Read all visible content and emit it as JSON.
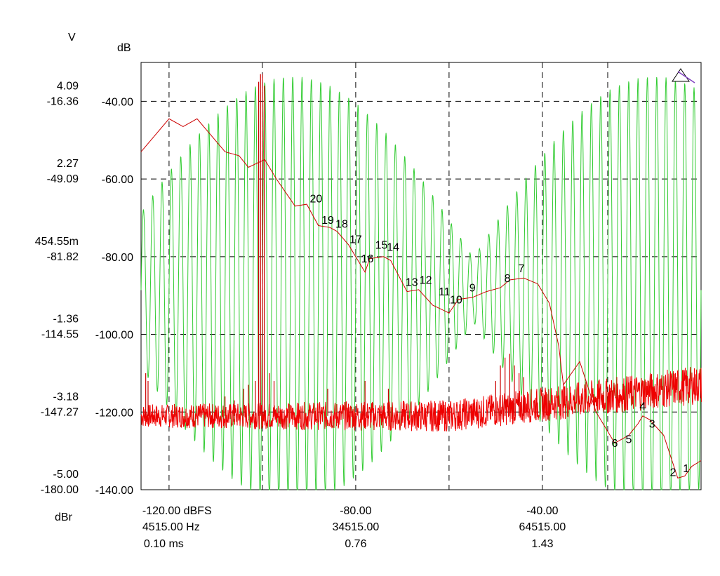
{
  "chart_data": {
    "type": "line",
    "primary_axis_unit": "dB",
    "left_axis_unit_v": "V",
    "left_axis_unit_dbr": "dBr",
    "ylim": [
      -140,
      -30
    ],
    "yticks": [
      {
        "db": "-40.00",
        "v": "4.09",
        "dbr": "-16.36"
      },
      {
        "db": "-60.00",
        "v": "2.27",
        "dbr": "-49.09"
      },
      {
        "db": "-80.00",
        "v": "454.55m",
        "dbr": "-81.82"
      },
      {
        "db": "-100.00",
        "v": "-1.36",
        "dbr": "-114.55"
      },
      {
        "db": "-120.00",
        "v": "-3.18",
        "dbr": "-147.27"
      },
      {
        "db": "-140.00",
        "v": "-5.00",
        "dbr": "-180.00"
      }
    ],
    "ytick_values": [
      -40,
      -60,
      -80,
      -100,
      -120,
      -140
    ],
    "xlim": [
      -126,
      -6
    ],
    "xticks_values": [
      -120,
      -80,
      -40
    ],
    "xticks": [
      {
        "dbfs": "-120.00 dBFS",
        "hz": "4515.00 Hz",
        "ms": "0.10 ms"
      },
      {
        "dbfs": "-80.00",
        "hz": "34515.00",
        "ms": "0.76"
      },
      {
        "dbfs": "-40.00",
        "hz": "64515.00",
        "ms": "1.43"
      }
    ],
    "extra_gridlines_x": [
      -100,
      -60,
      -26
    ],
    "series": [
      {
        "name": "red-trace",
        "color": "#cc0000",
        "points": [
          {
            "x": -126,
            "y": -53
          },
          {
            "x": -120,
            "y": -44.5
          },
          {
            "x": -117,
            "y": -46.5
          },
          {
            "x": -114,
            "y": -44.5
          },
          {
            "x": -108,
            "y": -53
          },
          {
            "x": -105,
            "y": -54
          },
          {
            "x": -103,
            "y": -57
          },
          {
            "x": -99.5,
            "y": -55
          },
          {
            "x": -97,
            "y": -60
          },
          {
            "x": -93,
            "y": -67
          },
          {
            "x": -90.5,
            "y": -66.5
          },
          {
            "x": -88,
            "y": -72
          },
          {
            "x": -85.5,
            "y": -72.5
          },
          {
            "x": -84,
            "y": -73.5
          },
          {
            "x": -81.5,
            "y": -77
          },
          {
            "x": -78,
            "y": -84
          },
          {
            "x": -77,
            "y": -80.5
          },
          {
            "x": -74,
            "y": -80
          },
          {
            "x": -72.5,
            "y": -81
          },
          {
            "x": -69,
            "y": -89
          },
          {
            "x": -66.5,
            "y": -88.5
          },
          {
            "x": -63.5,
            "y": -92.5
          },
          {
            "x": -60,
            "y": -94.5
          },
          {
            "x": -58,
            "y": -91
          },
          {
            "x": -55,
            "y": -90.5
          },
          {
            "x": -52,
            "y": -89
          },
          {
            "x": -49,
            "y": -88
          },
          {
            "x": -47,
            "y": -86
          },
          {
            "x": -44,
            "y": -85.5
          },
          {
            "x": -41,
            "y": -87
          },
          {
            "x": -38.5,
            "y": -92
          },
          {
            "x": -36.5,
            "y": -103
          },
          {
            "x": -35.5,
            "y": -113
          },
          {
            "x": -32,
            "y": -107
          },
          {
            "x": -28.5,
            "y": -120
          },
          {
            "x": -24.5,
            "y": -128
          },
          {
            "x": -21.5,
            "y": -126
          },
          {
            "x": -19.5,
            "y": -123
          },
          {
            "x": -18.5,
            "y": -121
          },
          {
            "x": -17,
            "y": -122
          },
          {
            "x": -14,
            "y": -126
          },
          {
            "x": -11,
            "y": -137
          },
          {
            "x": -9.5,
            "y": -136.5
          },
          {
            "x": -8,
            "y": -134
          },
          {
            "x": -6,
            "y": -132.5
          }
        ]
      },
      {
        "name": "green-trace",
        "color": "#33cc33"
      },
      {
        "name": "red-noise-floor",
        "color": "#ee0000"
      }
    ],
    "point_labels": [
      {
        "text": "1",
        "x": -9.2,
        "y": -135.5
      },
      {
        "text": "2",
        "x": -12,
        "y": -136.5
      },
      {
        "text": "3",
        "x": -16.5,
        "y": -124
      },
      {
        "text": "4",
        "x": -18.5,
        "y": -119.5
      },
      {
        "text": "5",
        "x": -21.5,
        "y": -128
      },
      {
        "text": "6",
        "x": -24.5,
        "y": -129
      },
      {
        "text": "7",
        "x": -44.5,
        "y": -84
      },
      {
        "text": "8",
        "x": -47.5,
        "y": -86.5
      },
      {
        "text": "9",
        "x": -55,
        "y": -89
      },
      {
        "text": "10",
        "x": -58.5,
        "y": -92
      },
      {
        "text": "11",
        "x": -61,
        "y": -90
      },
      {
        "text": "12",
        "x": -65,
        "y": -87
      },
      {
        "text": "13",
        "x": -68,
        "y": -87.5
      },
      {
        "text": "14",
        "x": -72,
        "y": -78.5
      },
      {
        "text": "15",
        "x": -74.5,
        "y": -78
      },
      {
        "text": "16",
        "x": -77.5,
        "y": -81.5
      },
      {
        "text": "17",
        "x": -80,
        "y": -76.5
      },
      {
        "text": "18",
        "x": -83,
        "y": -72.5
      },
      {
        "text": "19",
        "x": -86,
        "y": -71.5
      },
      {
        "text": "20",
        "x": -88.5,
        "y": -66
      }
    ]
  }
}
